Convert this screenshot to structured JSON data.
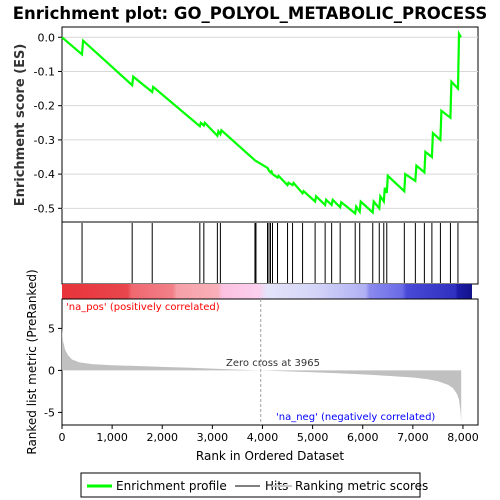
{
  "title": "Enrichment plot: GO_POLYOL_METABOLIC_PROCESS",
  "colors": {
    "enrichment_line": "#00ff00",
    "hits": "#000000",
    "metric_fill": "#c0c0c0",
    "zero_cross_line": "#a0a0a0",
    "pos_label": "#ff0000",
    "neg_label": "#0000ff"
  },
  "chart_data": [
    {
      "type": "line",
      "name": "enrichment-profile",
      "ylabel": "Enrichment score (ES)",
      "xlim": [
        0,
        8300
      ],
      "ylim": [
        -0.54,
        0.03
      ],
      "yticks": [
        "0.0",
        "-0.1",
        "-0.2",
        "-0.3",
        "-0.4",
        "-0.5"
      ],
      "ytick_values": [
        0.0,
        -0.1,
        -0.2,
        -0.3,
        -0.4,
        -0.5
      ],
      "grid": true,
      "x": [
        0,
        400,
        420,
        1400,
        1420,
        1800,
        1820,
        2750,
        2770,
        2830,
        2850,
        3100,
        3120,
        3160,
        3180,
        3850,
        4100,
        4130,
        4160,
        4180,
        4200,
        4300,
        4320,
        4500,
        4520,
        4600,
        4620,
        4800,
        4820,
        5050,
        5070,
        5250,
        5270,
        5380,
        5400,
        5550,
        5570,
        5850,
        5870,
        5940,
        5960,
        6200,
        6220,
        6330,
        6350,
        6420,
        6440,
        6480,
        6500,
        6830,
        6850,
        7050,
        7070,
        7230,
        7250,
        7380,
        7400,
        7550,
        7570,
        7750,
        7770,
        7900,
        7920,
        7960
      ],
      "y": [
        0.0,
        -0.05,
        -0.01,
        -0.14,
        -0.115,
        -0.16,
        -0.145,
        -0.26,
        -0.25,
        -0.258,
        -0.25,
        -0.288,
        -0.275,
        -0.283,
        -0.272,
        -0.36,
        -0.382,
        -0.39,
        -0.395,
        -0.392,
        -0.4,
        -0.41,
        -0.405,
        -0.432,
        -0.425,
        -0.432,
        -0.426,
        -0.456,
        -0.45,
        -0.48,
        -0.465,
        -0.49,
        -0.475,
        -0.49,
        -0.475,
        -0.497,
        -0.482,
        -0.515,
        -0.495,
        -0.51,
        -0.48,
        -0.512,
        -0.48,
        -0.5,
        -0.465,
        -0.48,
        -0.44,
        -0.455,
        -0.405,
        -0.45,
        -0.4,
        -0.42,
        -0.375,
        -0.395,
        -0.335,
        -0.35,
        -0.28,
        -0.3,
        -0.215,
        -0.235,
        -0.13,
        -0.15,
        0.01,
        0.0
      ]
    },
    {
      "type": "scatter",
      "name": "hits",
      "x": [
        400,
        1400,
        1800,
        2750,
        2830,
        3100,
        3160,
        3850,
        3870,
        4100,
        4130,
        4160,
        4200,
        4300,
        4500,
        4600,
        4800,
        5050,
        5250,
        5380,
        5550,
        5850,
        5940,
        6200,
        6330,
        6420,
        6480,
        6830,
        7050,
        7230,
        7380,
        7550,
        7750,
        7900
      ]
    },
    {
      "type": "area",
      "name": "ranked-metric",
      "xlabel": "Rank in Ordered Dataset",
      "ylabel": "Ranked list metric (PreRanked)",
      "xlim": [
        0,
        8300
      ],
      "ylim": [
        -6.5,
        8.5
      ],
      "yticks": [
        "-5",
        "0",
        "5"
      ],
      "ytick_values": [
        -5,
        0,
        5
      ],
      "xticks": [
        "0",
        "1,000",
        "2,000",
        "3,000",
        "4,000",
        "5,000",
        "6,000",
        "7,000",
        "8,000"
      ],
      "xtick_values": [
        0,
        1000,
        2000,
        3000,
        4000,
        5000,
        6000,
        7000,
        8000
      ],
      "x": [
        0,
        20,
        60,
        120,
        200,
        350,
        600,
        1000,
        1500,
        2000,
        2500,
        3000,
        3500,
        3965,
        4500,
        5000,
        5500,
        6000,
        6500,
        7000,
        7300,
        7500,
        7700,
        7800,
        7880,
        7920,
        7950,
        7965
      ],
      "y": [
        5.2,
        3.5,
        2.5,
        1.8,
        1.3,
        0.95,
        0.75,
        0.62,
        0.52,
        0.42,
        0.33,
        0.22,
        0.1,
        0.0,
        -0.12,
        -0.22,
        -0.35,
        -0.48,
        -0.65,
        -0.85,
        -1.05,
        -1.3,
        -1.7,
        -2.1,
        -2.8,
        -3.5,
        -4.8,
        -6.2
      ]
    }
  ],
  "annotations": {
    "zero_cross": "Zero cross at 3965",
    "pos_label": "'na_pos' (positively correlated)",
    "neg_label": "'na_neg' (negatively correlated)"
  },
  "legend": {
    "placement": "bottom",
    "items": [
      {
        "label": "Enrichment profile",
        "color": "#00ff00"
      },
      {
        "label": "Hits",
        "color": "#808080"
      },
      {
        "label": "Ranking metric scores",
        "color": "#c8c8c8"
      }
    ]
  }
}
